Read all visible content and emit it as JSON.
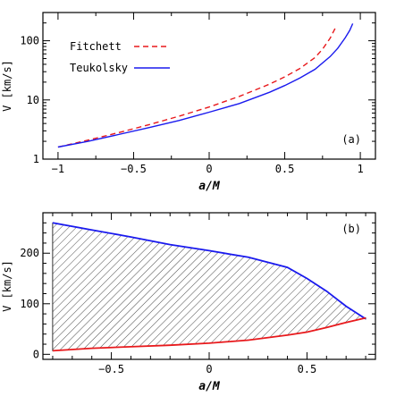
{
  "chart_data": [
    {
      "type": "line",
      "panel_label": "(a)",
      "xlabel": "a/M",
      "ylabel": "V [km/s]",
      "xlim": [
        -1.1,
        1.1
      ],
      "ylim": [
        1,
        300
      ],
      "yscale": "log",
      "xticks": [
        -1,
        -0.5,
        0,
        0.5,
        1
      ],
      "xtick_labels": [
        "−1",
        "−0.5",
        "0",
        "0.5",
        "1"
      ],
      "yticks": [
        1,
        10,
        100
      ],
      "ytick_labels": [
        "1",
        "10",
        "100"
      ],
      "legend_position": "top-left",
      "series": [
        {
          "name": "Fitchett",
          "style": "dashed",
          "color": "#e8191c",
          "x": [
            -1.0,
            -0.8,
            -0.6,
            -0.4,
            -0.2,
            0.0,
            0.2,
            0.4,
            0.5,
            0.6,
            0.7,
            0.75,
            0.8,
            0.84
          ],
          "y": [
            1.6,
            2.1,
            2.8,
            3.8,
            5.3,
            7.6,
            11.5,
            18.5,
            24.5,
            34,
            52,
            72,
            110,
            175
          ]
        },
        {
          "name": "Teukolsky",
          "style": "solid",
          "color": "#1a1aee",
          "x": [
            -1.0,
            -0.8,
            -0.6,
            -0.4,
            -0.2,
            0.0,
            0.2,
            0.4,
            0.5,
            0.6,
            0.7,
            0.8,
            0.85,
            0.9,
            0.93,
            0.95
          ],
          "y": [
            1.6,
            2.0,
            2.6,
            3.4,
            4.5,
            6.2,
            8.7,
            13.5,
            17.5,
            23.5,
            33,
            54,
            74,
            112,
            150,
            195
          ]
        }
      ]
    },
    {
      "type": "area",
      "panel_label": "(b)",
      "xlabel": "a/M",
      "ylabel": "V [km/s]",
      "xlim": [
        -0.85,
        0.85
      ],
      "ylim": [
        -10,
        280
      ],
      "xticks": [
        -0.5,
        0,
        0.5
      ],
      "xtick_labels": [
        "−0.5",
        "0",
        "0.5"
      ],
      "yticks": [
        0,
        100,
        200
      ],
      "ytick_labels": [
        "0",
        "100",
        "200"
      ],
      "fill": "hatched",
      "series": [
        {
          "name": "upper",
          "color": "#1a1aee",
          "x": [
            -0.8,
            -0.6,
            -0.4,
            -0.2,
            0.0,
            0.2,
            0.4,
            0.5,
            0.6,
            0.7,
            0.8
          ],
          "y": [
            260,
            246,
            232,
            217,
            205,
            192,
            172,
            150,
            125,
            95,
            70
          ]
        },
        {
          "name": "lower",
          "color": "#e8191c",
          "x": [
            -0.8,
            -0.6,
            -0.4,
            -0.2,
            0.0,
            0.2,
            0.4,
            0.5,
            0.6,
            0.7,
            0.8
          ],
          "y": [
            7,
            12,
            15,
            18,
            22,
            28,
            38,
            44,
            53,
            63,
            72
          ]
        }
      ]
    }
  ]
}
